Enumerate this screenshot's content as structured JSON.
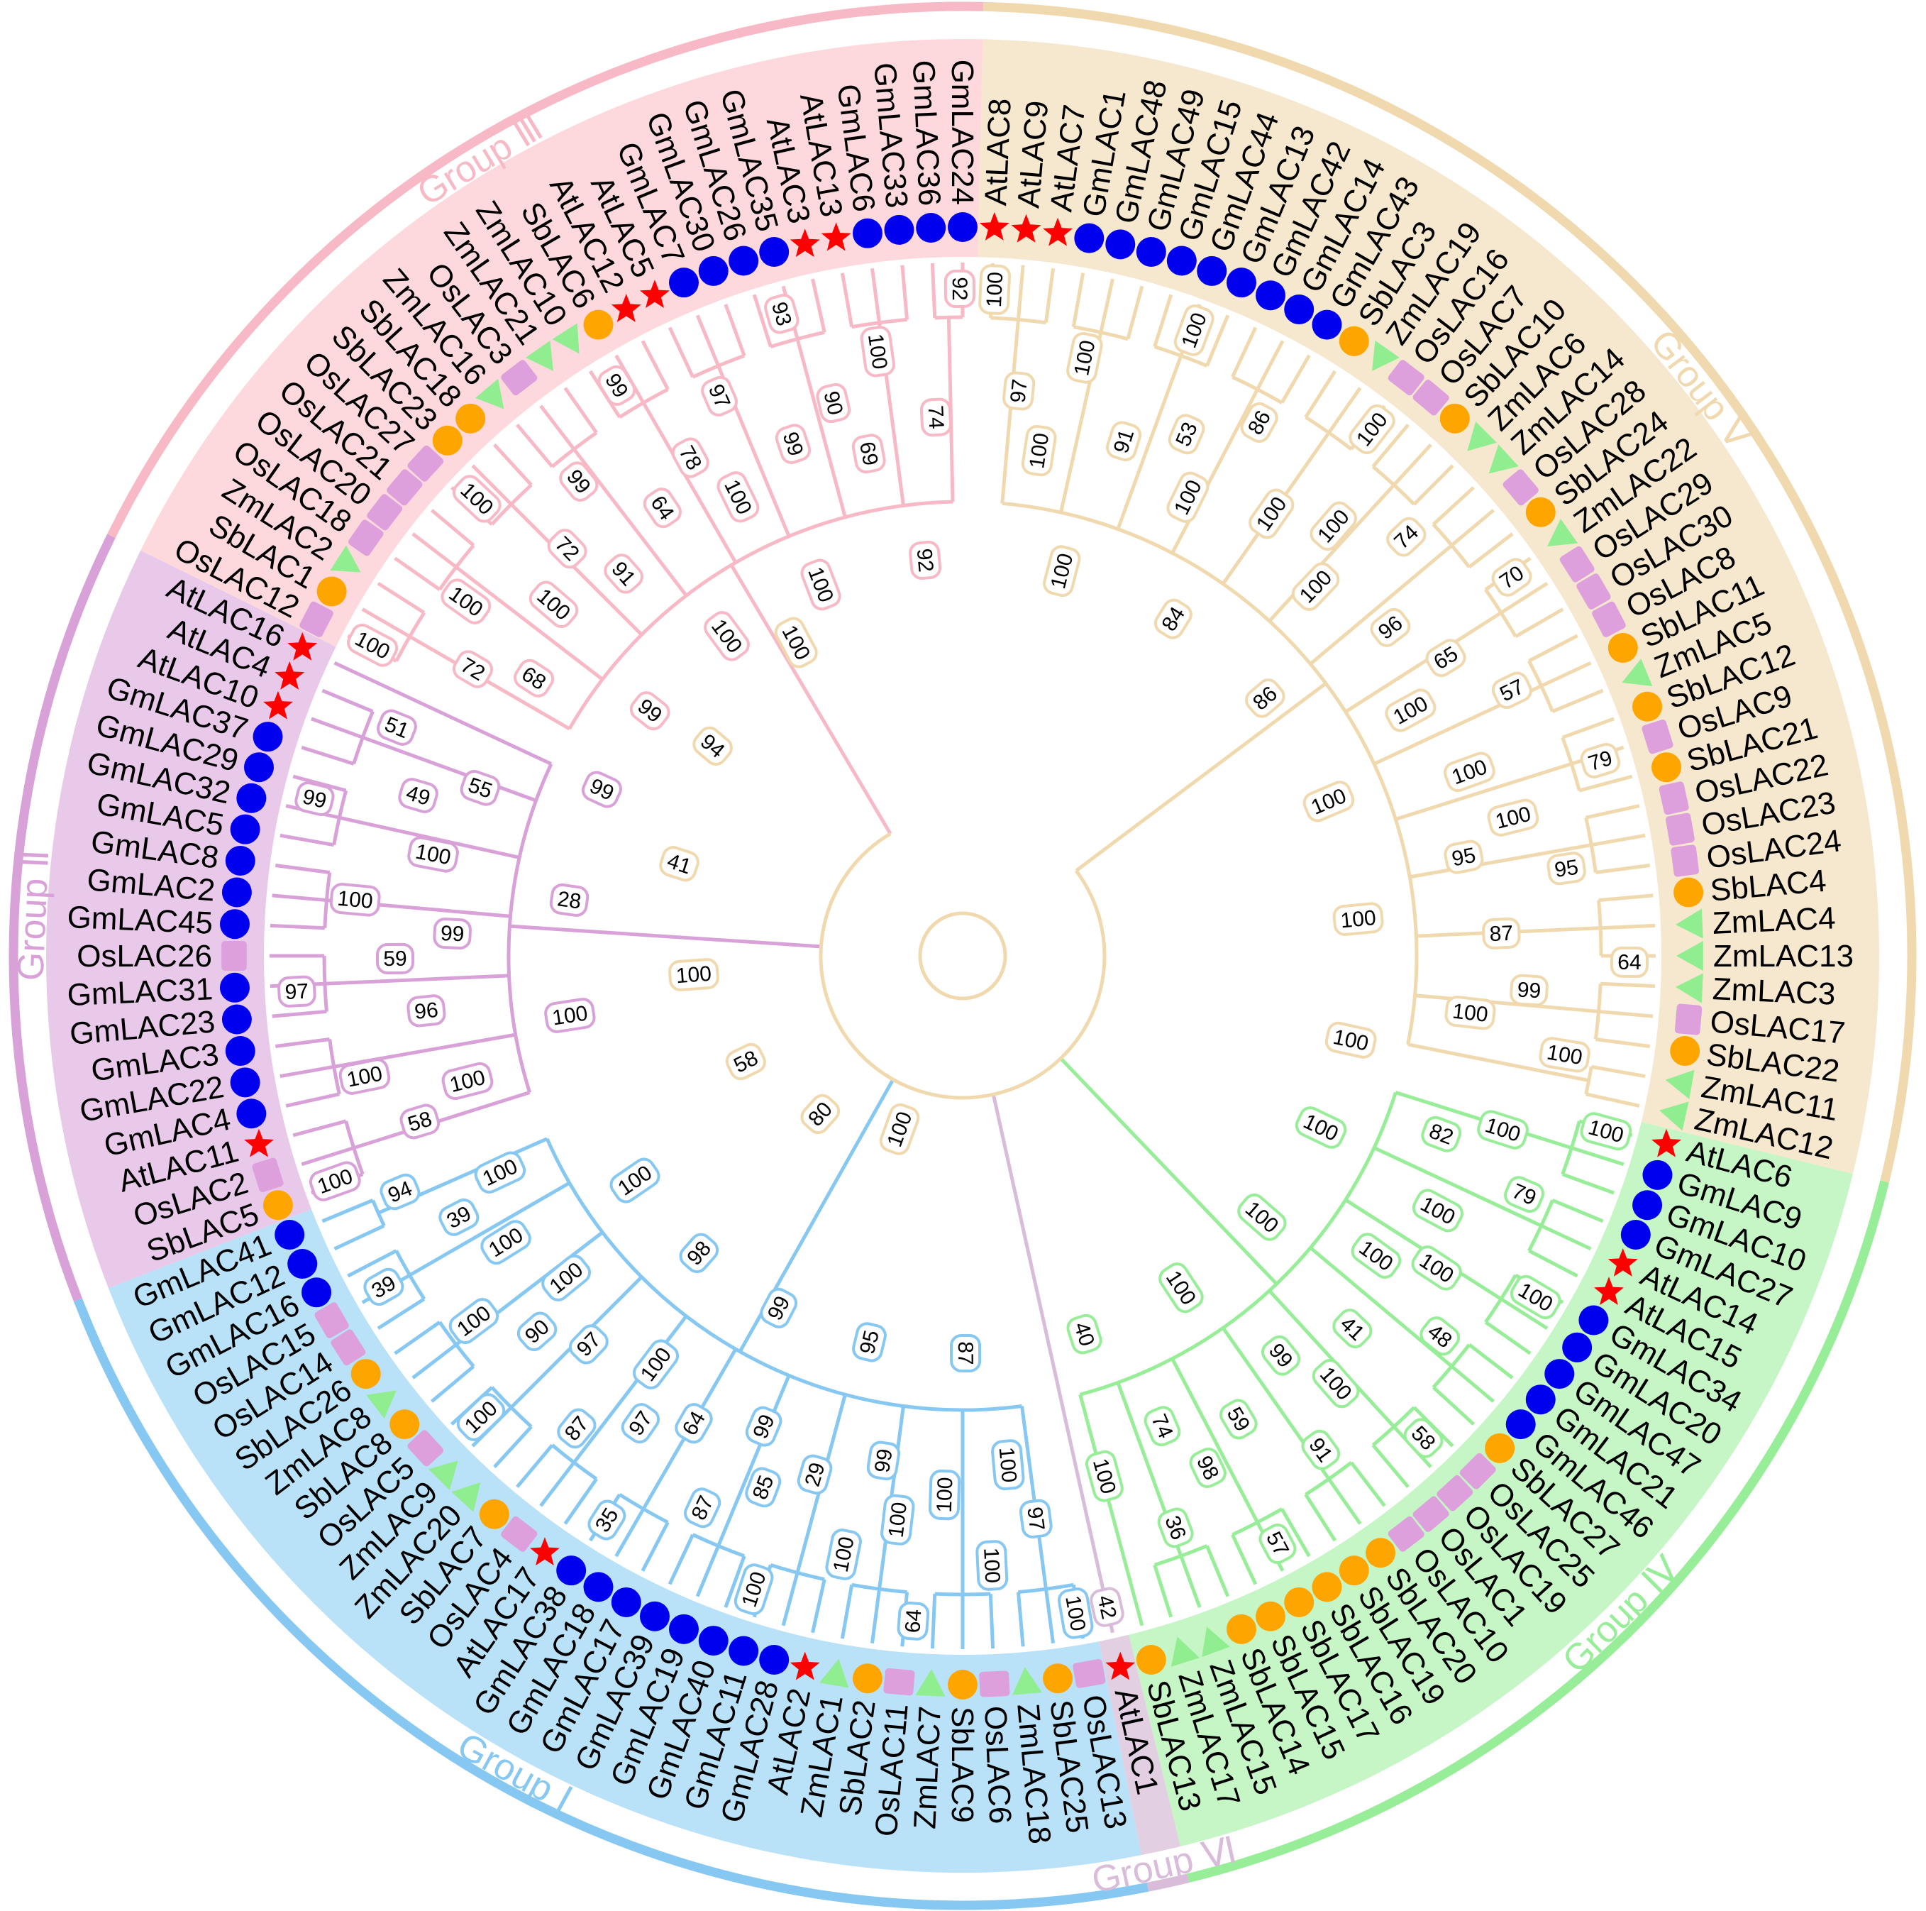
{
  "species_markers": {
    "At": {
      "shape": "star",
      "color": "#ff0000"
    },
    "Gm": {
      "shape": "circle",
      "color": "#0000ee"
    },
    "Sb": {
      "shape": "circle",
      "color": "#ffa500"
    },
    "Os": {
      "shape": "square",
      "color": "#dda0dd"
    },
    "Zm": {
      "shape": "triangle",
      "color": "#90ee90"
    }
  },
  "groups": [
    {
      "label": "Group Ⅴ",
      "band_color": "#f6e7cf",
      "arc_color": "#f0d9ae",
      "branch_color": "#f0d9ae",
      "leaves": [
        "AtLAC8",
        "AtLAC9",
        "AtLAC7",
        "GmLAC1",
        "GmLAC48",
        "GmLAC49",
        "GmLAC15",
        "GmLAC44",
        "GmLAC13",
        "GmLAC42",
        "GmLAC14",
        "GmLAC43",
        "SbLAC3",
        "ZmLAC19",
        "OsLAC16",
        "OsLAC7",
        "SbLAC10",
        "ZmLAC6",
        "ZmLAC14",
        "OsLAC28",
        "SbLAC24",
        "ZmLAC22",
        "OsLAC29",
        "OsLAC30",
        "OsLAC8",
        "SbLAC11",
        "ZmLAC5",
        "SbLAC12",
        "OsLAC9",
        "SbLAC21",
        "OsLAC22",
        "OsLAC23",
        "OsLAC24",
        "SbLAC4",
        "ZmLAC4",
        "ZmLAC13",
        "ZmLAC3",
        "OsLAC17",
        "SbLAC22",
        "ZmLAC11",
        "ZmLAC12"
      ],
      "bootstrap": [
        "100",
        "97",
        "100",
        "100",
        "100",
        "91",
        "100",
        "53",
        "100",
        "86",
        "84",
        "100",
        "100",
        "100",
        "100",
        "74",
        "86",
        "96",
        "70",
        "65",
        "100",
        "57",
        "100",
        "100",
        "79",
        "100",
        "95",
        "95",
        "100",
        "87",
        "64",
        "99",
        "100",
        "100",
        "100"
      ]
    },
    {
      "label": "Group Ⅳ",
      "band_color": "#c6f5c6",
      "arc_color": "#98ee98",
      "branch_color": "#98ee98",
      "leaves": [
        "AtLAC6",
        "GmLAC9",
        "GmLAC10",
        "GmLAC27",
        "AtLAC14",
        "AtLAC15",
        "GmLAC34",
        "GmLAC20",
        "GmLAC47",
        "GmLAC21",
        "GmLAC46",
        "SbLAC27",
        "OsLAC25",
        "OsLAC19",
        "OsLAC1",
        "OsLAC10",
        "SbLAC20",
        "SbLAC19",
        "SbLAC16",
        "SbLAC17",
        "SbLAC15",
        "SbLAC14",
        "ZmLAC15",
        "ZmLAC17",
        "SbLAC13"
      ],
      "bootstrap": [
        "100",
        "100",
        "82",
        "79",
        "100",
        "100",
        "100",
        "100",
        "100",
        "48",
        "100",
        "41",
        "58",
        "100",
        "99",
        "91",
        "100",
        "59",
        "57",
        "98",
        "74",
        "36",
        "40",
        "100"
      ]
    },
    {
      "label": "Group Ⅵ",
      "band_color": "#e2cfe2",
      "arc_color": "#d9bcd9",
      "branch_color": "#d9bcd9",
      "leaves": [
        "AtLAC1"
      ],
      "bootstrap": [
        "42"
      ]
    },
    {
      "label": "Group Ⅰ",
      "band_color": "#b9e1f8",
      "arc_color": "#86c8f2",
      "branch_color": "#86c8f2",
      "leaves": [
        "OsLAC13",
        "SbLAC25",
        "ZmLAC18",
        "OsLAC6",
        "SbLAC9",
        "ZmLAC7",
        "OsLAC11",
        "SbLAC2",
        "ZmLAC1",
        "AtLAC2",
        "GmLAC28",
        "GmLAC11",
        "GmLAC40",
        "GmLAC19",
        "GmLAC39",
        "GmLAC17",
        "GmLAC18",
        "GmLAC38",
        "AtLAC17",
        "OsLAC4",
        "SbLAC7",
        "ZmLAC20",
        "ZmLAC9",
        "OsLAC5",
        "SbLAC8",
        "ZmLAC8",
        "SbLAC26",
        "OsLAC14",
        "OsLAC15",
        "GmLAC16",
        "GmLAC12",
        "GmLAC41"
      ],
      "bootstrap": [
        "100",
        "97",
        "100",
        "100",
        "87",
        "100",
        "64",
        "100",
        "99",
        "100",
        "95",
        "29",
        "100",
        "85",
        "99",
        "87",
        "99",
        "64",
        "35",
        "97",
        "100",
        "87",
        "98",
        "97",
        "100",
        "90",
        "100",
        "100",
        "100",
        "100",
        "39",
        "39",
        "100",
        "94"
      ]
    },
    {
      "label": "Group Ⅱ",
      "band_color": "#e9c9ea",
      "arc_color": "#d8a2d8",
      "branch_color": "#d8a2d8",
      "leaves": [
        "SbLAC5",
        "OsLAC2",
        "AtLAC11",
        "GmLAC4",
        "GmLAC22",
        "GmLAC3",
        "GmLAC23",
        "GmLAC31",
        "OsLAC26",
        "GmLAC45",
        "GmLAC2",
        "GmLAC8",
        "GmLAC5",
        "GmLAC32",
        "GmLAC29",
        "GmLAC37",
        "AtLAC10",
        "AtLAC4",
        "AtLAC16"
      ],
      "bootstrap": [
        "100",
        "58",
        "100",
        "100",
        "100",
        "96",
        "97",
        "59",
        "99",
        "100",
        "28",
        "100",
        "99",
        "49",
        "55",
        "51",
        "99"
      ]
    },
    {
      "label": "Group Ⅲ",
      "band_color": "#fdd9dd",
      "arc_color": "#f8b9c6",
      "branch_color": "#f8b9c6",
      "leaves": [
        "OsLAC12",
        "SbLAC1",
        "ZmLAC2",
        "OsLAC18",
        "OsLAC20",
        "OsLAC21",
        "OsLAC27",
        "SbLAC23",
        "SbLAC18",
        "ZmLAC16",
        "OsLAC3",
        "ZmLAC21",
        "ZmLAC10",
        "SbLAC6",
        "AtLAC12",
        "AtLAC5",
        "GmLAC7",
        "GmLAC30",
        "GmLAC26",
        "GmLAC35",
        "AtLAC3",
        "AtLAC13",
        "GmLAC6",
        "GmLAC33",
        "GmLAC36",
        "GmLAC24"
      ],
      "bootstrap": [
        "100",
        "72",
        "68",
        "100",
        "99",
        "100",
        "100",
        "72",
        "91",
        "99",
        "100",
        "64",
        "99",
        "78",
        "100",
        "97",
        "100",
        "99",
        "93",
        "90",
        "69",
        "100",
        "92",
        "74",
        "92"
      ]
    }
  ],
  "root_bootstrap": [
    "100",
    "80",
    "58",
    "100",
    "41",
    "94",
    "100"
  ]
}
